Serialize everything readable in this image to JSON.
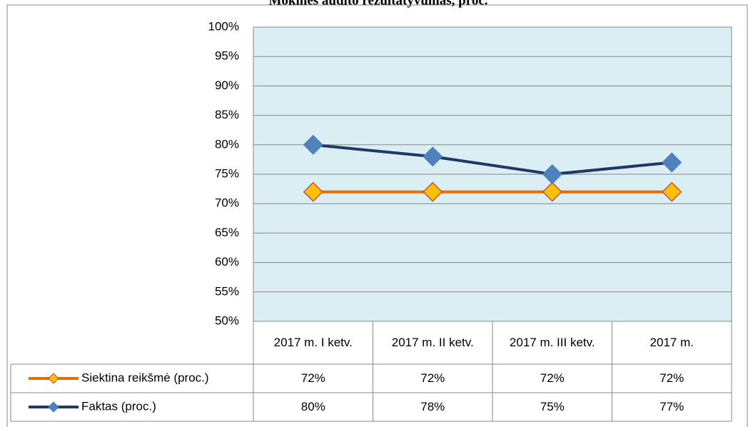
{
  "chart_data": {
    "type": "line",
    "title": "Mokinės audito rezultatyvumas, proc.",
    "categories": [
      "2017 m. I ketv.",
      "2017 m. II ketv.",
      "2017 m. III ketv.",
      "2017 m."
    ],
    "series": [
      {
        "name": "Siektina reikšmė (proc.)",
        "color": "#e46c0a",
        "marker_color": "#ffc000",
        "marker_edge": "#c0504d",
        "values": [
          72,
          72,
          72,
          72
        ],
        "value_labels": [
          "72%",
          "72%",
          "72%",
          "72%"
        ]
      },
      {
        "name": "Faktas (proc.)",
        "color": "#1f3864",
        "marker_color": "#4f81bd",
        "marker_edge": "#4f81bd",
        "values": [
          80,
          78,
          75,
          77
        ],
        "value_labels": [
          "80%",
          "78%",
          "75%",
          "77%"
        ]
      }
    ],
    "ylim": [
      50,
      100
    ],
    "yticks": [
      {
        "value": 50,
        "label": "50%"
      },
      {
        "value": 55,
        "label": "55%"
      },
      {
        "value": 60,
        "label": "60%"
      },
      {
        "value": 65,
        "label": "65%"
      },
      {
        "value": 70,
        "label": "70%"
      },
      {
        "value": 75,
        "label": "75%"
      },
      {
        "value": 80,
        "label": "80%"
      },
      {
        "value": 85,
        "label": "85%"
      },
      {
        "value": 90,
        "label": "90%"
      },
      {
        "value": 95,
        "label": "95%"
      },
      {
        "value": 100,
        "label": "100%"
      }
    ],
    "grid": true,
    "plot_background": "#daeef3",
    "data_table": true
  }
}
